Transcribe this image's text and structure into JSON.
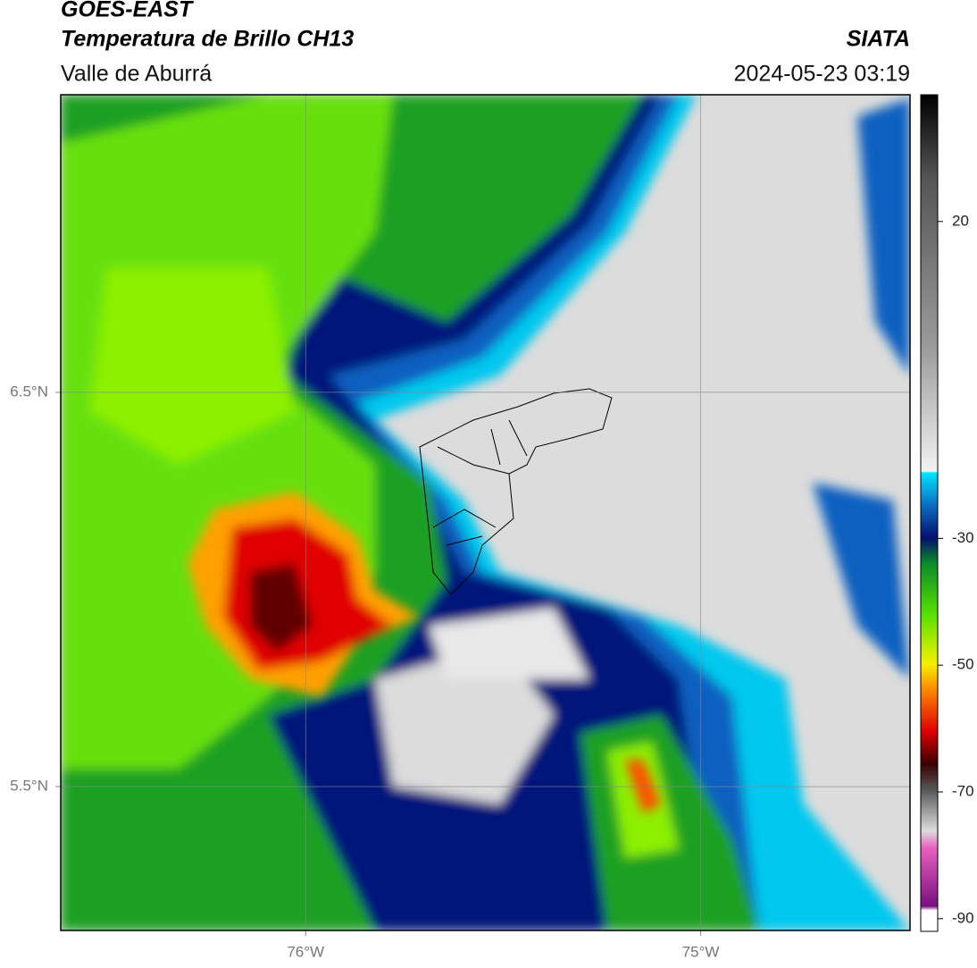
{
  "header": {
    "title": "GOES-EAST",
    "subtitle": "Temperatura de Brillo CH13",
    "region": "Valle de Aburrá",
    "source": "SIATA",
    "datetime": "2024-05-23 03:19"
  },
  "map": {
    "lonlim": [
      -76.62,
      -74.47
    ],
    "latlim": [
      5.135,
      7.255
    ],
    "lon_ticks": [
      {
        "value": -76,
        "label": "76°W"
      },
      {
        "value": -75,
        "label": "75°W"
      }
    ],
    "lat_ticks": [
      {
        "value": 6.5,
        "label": "6.5°N"
      },
      {
        "value": 5.5,
        "label": "5.5°N"
      }
    ]
  },
  "colorbar": {
    "lim": [
      -92,
      40
    ],
    "ticks": [
      20,
      -30,
      -50,
      -70,
      -90
    ]
  }
}
